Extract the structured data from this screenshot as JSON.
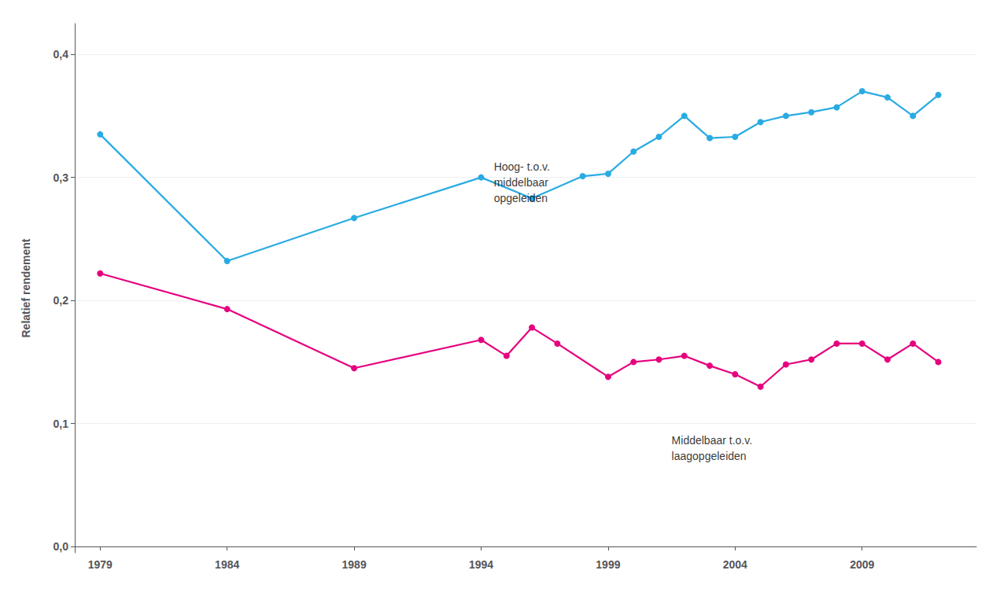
{
  "chart_data": {
    "type": "line",
    "ylabel": "Relatief rendement",
    "marker": "circle",
    "grid": true,
    "series": [
      {
        "color": "#29ABE2",
        "x": [
          1979,
          1984,
          1989,
          1994,
          1996,
          1998,
          1999,
          2000,
          2001,
          2002,
          2003,
          2004,
          2005,
          2006,
          2007,
          2008,
          2009,
          2010,
          2011,
          2012
        ],
        "values": [
          0.335,
          0.232,
          0.267,
          0.3,
          0.283,
          0.301,
          0.303,
          0.321,
          0.333,
          0.35,
          0.332,
          0.333,
          0.345,
          0.35,
          0.353,
          0.357,
          0.37,
          0.365,
          0.35,
          0.367
        ]
      },
      {
        "color": "#E6007E",
        "x": [
          1979,
          1984,
          1989,
          1994,
          1995,
          1996,
          1997,
          1999,
          2000,
          2001,
          2002,
          2003,
          2004,
          2005,
          2006,
          2007,
          2008,
          2009,
          2010,
          2011,
          2012
        ],
        "values": [
          0.222,
          0.193,
          0.145,
          0.168,
          0.155,
          0.178,
          0.165,
          0.138,
          0.15,
          0.152,
          0.155,
          0.147,
          0.14,
          0.13,
          0.148,
          0.152,
          0.165,
          0.165,
          0.152,
          0.165,
          0.15
        ]
      }
    ],
    "annotations": [
      {
        "text": "Hoog- t.o.v.\nmiddelbaar\nopgeleiden",
        "x": 1994.5,
        "y": 0.315
      },
      {
        "text": "Middelbaar t.o.v.\nlaagopgeleiden",
        "x": 2001.5,
        "y": 0.093
      }
    ],
    "xlim": [
      1978.0,
      2013.5
    ],
    "ylim": [
      -0.005,
      0.425
    ],
    "xticks": [
      1979,
      1984,
      1989,
      1994,
      1999,
      2004,
      2009
    ],
    "yticks": [
      {
        "value": 0.0,
        "label": "0,0"
      },
      {
        "value": 0.1,
        "label": "0,1"
      },
      {
        "value": 0.2,
        "label": "0,2"
      },
      {
        "value": 0.3,
        "label": "0,3"
      },
      {
        "value": 0.4,
        "label": "0,4"
      }
    ]
  }
}
